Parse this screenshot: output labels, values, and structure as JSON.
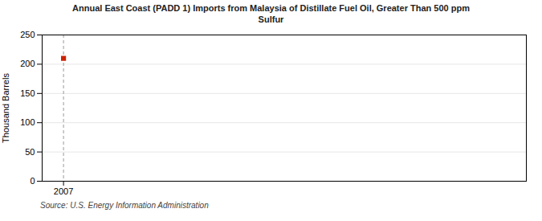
{
  "chart_data": {
    "type": "scatter",
    "title": "Annual East Coast (PADD 1) Imports from Malaysia of Distillate Fuel Oil, Greater Than 500 ppm\nSulfur",
    "ylabel": "Thousand Barrels",
    "source": "Source: U.S. Energy Information Administration",
    "x": [
      2007
    ],
    "values": [
      210
    ],
    "color": "#cc2200",
    "marker": "square",
    "vlines": [
      2007
    ],
    "xlim": [
      2006.4,
      2020
    ],
    "xticks": [
      2007
    ],
    "ylim": [
      0,
      250
    ],
    "yticks": [
      0,
      50,
      100,
      150,
      200,
      250
    ],
    "grid": true
  }
}
